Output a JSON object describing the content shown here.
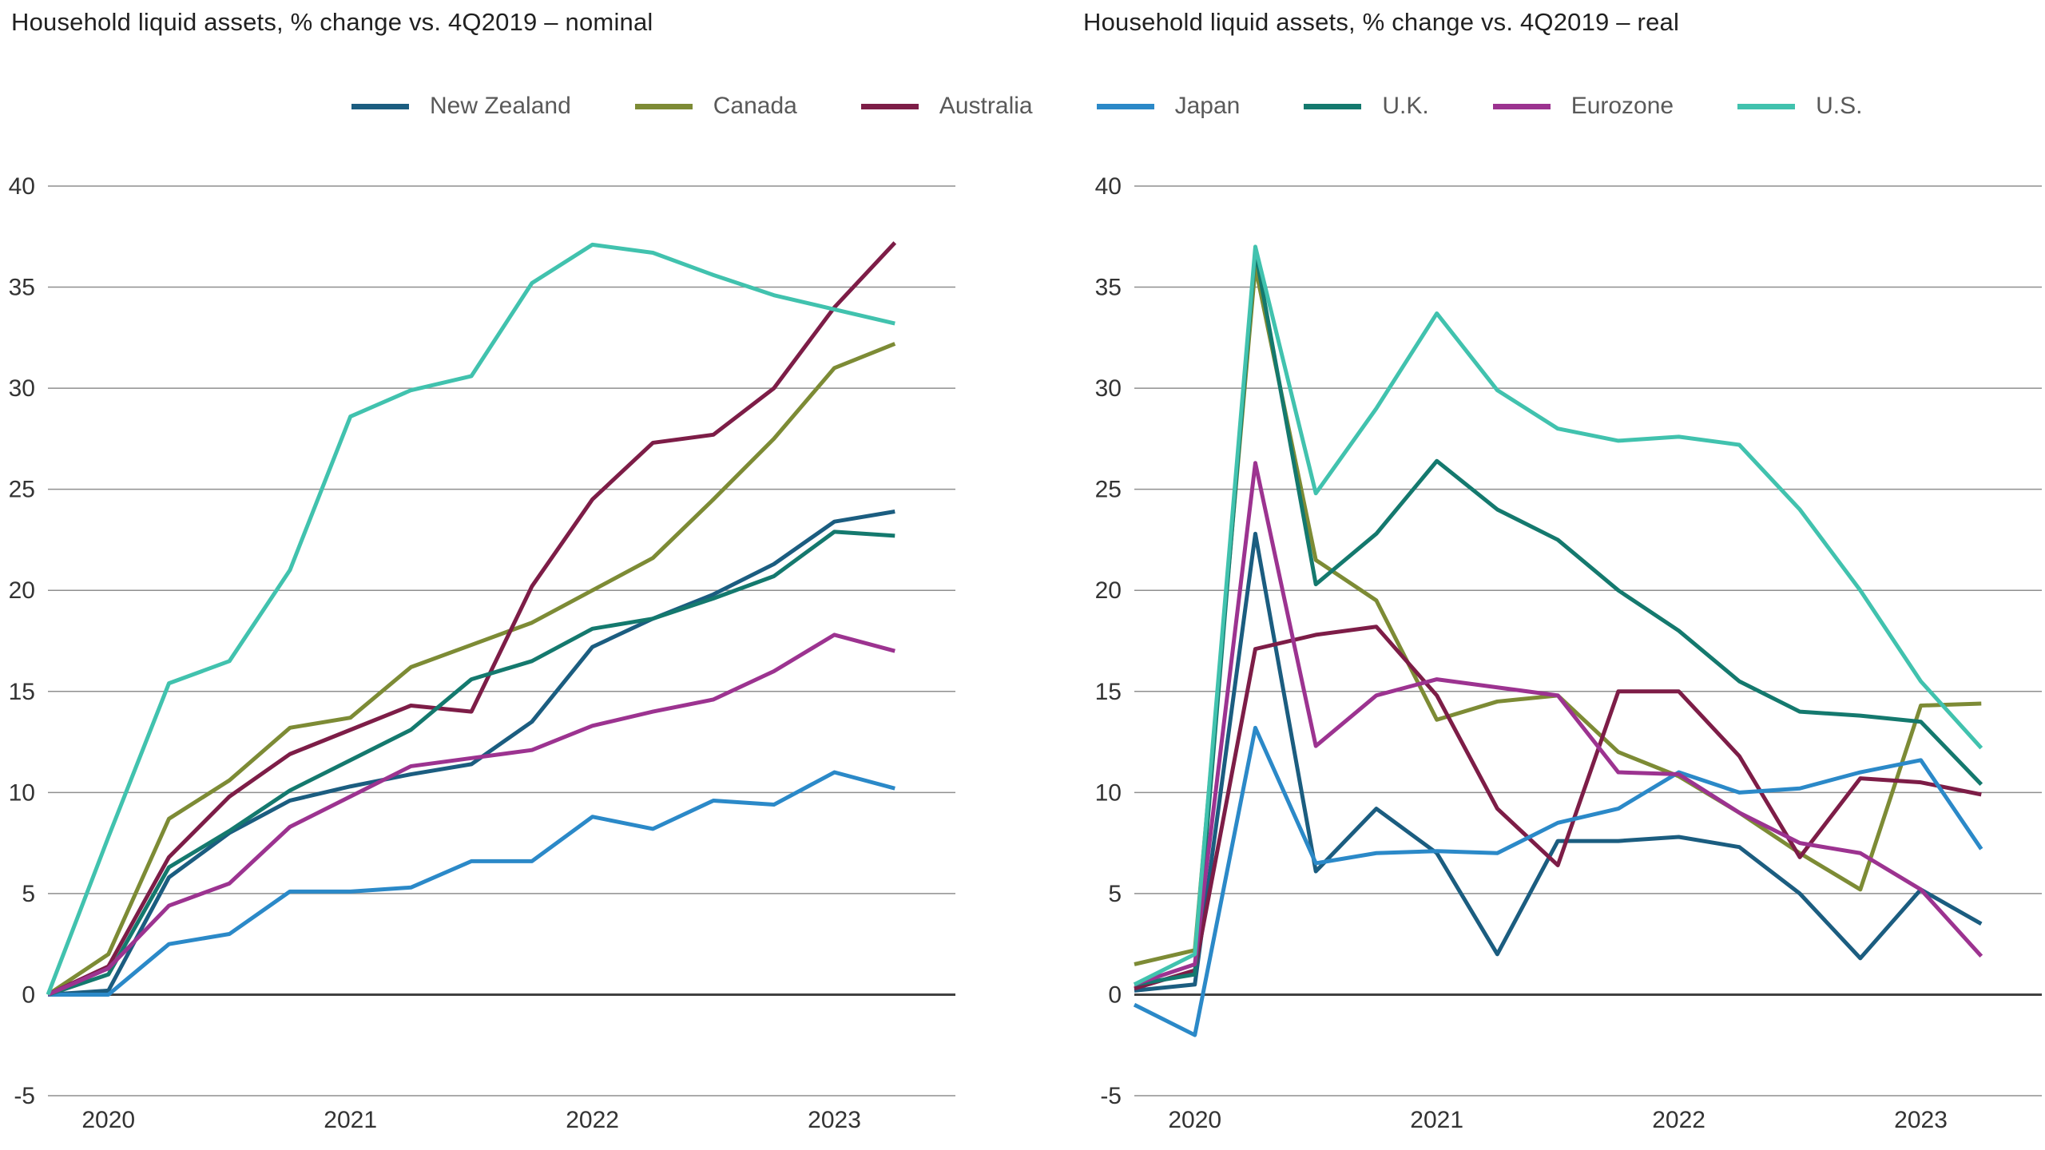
{
  "page_title": "Household liquid assets, % change vs. 4Q2019",
  "legend": [
    {
      "label": "New Zealand",
      "color": "#1b5d80"
    },
    {
      "label": "Canada",
      "color": "#7d8b35"
    },
    {
      "label": "Australia",
      "color": "#7d1d47"
    },
    {
      "label": "Japan",
      "color": "#2b89c8"
    },
    {
      "label": "U.K.",
      "color": "#14796e"
    },
    {
      "label": "Eurozone",
      "color": "#9c3390"
    },
    {
      "label": "U.S.",
      "color": "#41c2ae"
    }
  ],
  "axis_colors": {
    "gridline": "#8f8f8f",
    "zero_line": "#404040",
    "tick_text": "#333333"
  },
  "chart_data": [
    {
      "type": "line",
      "title": "Household liquid assets, % change vs. 4Q2019 – nominal",
      "x": [
        "4Q2019",
        "1Q2020",
        "2Q2020",
        "3Q2020",
        "4Q2020",
        "1Q2021",
        "2Q2021",
        "3Q2021",
        "4Q2021",
        "1Q2022",
        "2Q2022",
        "3Q2022",
        "4Q2022",
        "1Q2023",
        "2Q2023"
      ],
      "x_tick_labels": [
        {
          "label": "2020",
          "index": 1
        },
        {
          "label": "2021",
          "index": 5
        },
        {
          "label": "2022",
          "index": 9
        },
        {
          "label": "2023",
          "index": 13
        }
      ],
      "ylim": [
        -5,
        40
      ],
      "yticks": [
        40,
        35,
        30,
        25,
        20,
        15,
        10,
        5,
        0,
        -5
      ],
      "grid": "horizontal",
      "legend_position": "top",
      "series": [
        {
          "name": "New Zealand",
          "values": [
            0,
            0.2,
            5.8,
            8.0,
            9.6,
            10.3,
            10.9,
            11.4,
            13.5,
            17.2,
            18.6,
            19.8,
            21.3,
            23.4,
            23.9
          ]
        },
        {
          "name": "Canada",
          "values": [
            0,
            2.0,
            8.7,
            10.6,
            13.2,
            13.7,
            16.2,
            17.3,
            18.4,
            20.0,
            21.6,
            24.5,
            27.5,
            31.0,
            32.2
          ]
        },
        {
          "name": "Australia",
          "values": [
            0,
            1.4,
            6.8,
            9.8,
            11.9,
            13.1,
            14.3,
            14.0,
            20.2,
            24.5,
            27.3,
            27.7,
            30.0,
            34.0,
            37.2
          ]
        },
        {
          "name": "Japan",
          "values": [
            0,
            0.0,
            2.5,
            3.0,
            5.1,
            5.1,
            5.3,
            6.6,
            6.6,
            8.8,
            8.2,
            9.6,
            9.4,
            11.0,
            10.2
          ]
        },
        {
          "name": "U.K.",
          "values": [
            0,
            1.0,
            6.3,
            8.1,
            10.1,
            11.6,
            13.1,
            15.6,
            16.5,
            18.1,
            18.6,
            19.6,
            20.7,
            22.9,
            22.7
          ]
        },
        {
          "name": "Eurozone",
          "values": [
            0,
            1.3,
            4.4,
            5.5,
            8.3,
            9.8,
            11.3,
            11.7,
            12.1,
            13.3,
            14.0,
            14.6,
            16.0,
            17.8,
            17.0
          ]
        },
        {
          "name": "U.S.",
          "values": [
            0,
            7.8,
            15.4,
            16.5,
            21.0,
            28.6,
            29.9,
            30.6,
            35.2,
            37.1,
            36.7,
            35.6,
            34.6,
            33.9,
            33.2
          ]
        }
      ]
    },
    {
      "type": "line",
      "title": "Household liquid assets, % change vs. 4Q2019 – real",
      "x": [
        "4Q2019",
        "1Q2020",
        "2Q2020",
        "3Q2020",
        "4Q2020",
        "1Q2021",
        "2Q2021",
        "3Q2021",
        "4Q2021",
        "1Q2022",
        "2Q2022",
        "3Q2022",
        "4Q2022",
        "1Q2023",
        "2Q2023"
      ],
      "x_tick_labels": [
        {
          "label": "2020",
          "index": 1
        },
        {
          "label": "2021",
          "index": 5
        },
        {
          "label": "2022",
          "index": 9
        },
        {
          "label": "2023",
          "index": 13
        }
      ],
      "ylim": [
        -5,
        40
      ],
      "yticks": [
        40,
        35,
        30,
        25,
        20,
        15,
        10,
        5,
        0,
        -5
      ],
      "grid": "horizontal",
      "legend_position": "top",
      "series": [
        {
          "name": "New Zealand",
          "values": [
            0.2,
            0.5,
            22.8,
            6.1,
            9.2,
            7.0,
            2.0,
            7.6,
            7.6,
            7.8,
            7.3,
            5.0,
            1.8,
            5.2,
            3.5
          ]
        },
        {
          "name": "Canada",
          "values": [
            1.5,
            2.2,
            36.0,
            21.5,
            19.5,
            13.6,
            14.5,
            14.8,
            12.0,
            10.8,
            9.0,
            7.0,
            5.2,
            14.3,
            14.4
          ]
        },
        {
          "name": "Australia",
          "values": [
            0.3,
            1.2,
            17.1,
            17.8,
            18.2,
            14.8,
            9.2,
            6.4,
            15.0,
            15.0,
            11.8,
            6.8,
            10.7,
            10.5,
            9.9
          ]
        },
        {
          "name": "Japan",
          "values": [
            -0.5,
            -2.0,
            13.2,
            6.5,
            7.0,
            7.1,
            7.0,
            8.5,
            9.2,
            11.0,
            10.0,
            10.2,
            11.0,
            11.6,
            7.2
          ]
        },
        {
          "name": "U.K.",
          "values": [
            0.5,
            1.0,
            36.8,
            20.3,
            22.8,
            26.4,
            24.0,
            22.5,
            20.0,
            18.0,
            15.5,
            14.0,
            13.8,
            13.5,
            10.4
          ]
        },
        {
          "name": "Eurozone",
          "values": [
            0.5,
            1.5,
            26.3,
            12.3,
            14.8,
            15.6,
            15.2,
            14.8,
            11.0,
            10.9,
            9.0,
            7.5,
            7.0,
            5.2,
            1.9
          ]
        },
        {
          "name": "U.S.",
          "values": [
            0.5,
            2.0,
            37.0,
            24.8,
            29.0,
            33.7,
            29.9,
            28.0,
            27.4,
            27.6,
            27.2,
            24.0,
            20.0,
            15.5,
            12.2
          ]
        }
      ]
    }
  ]
}
